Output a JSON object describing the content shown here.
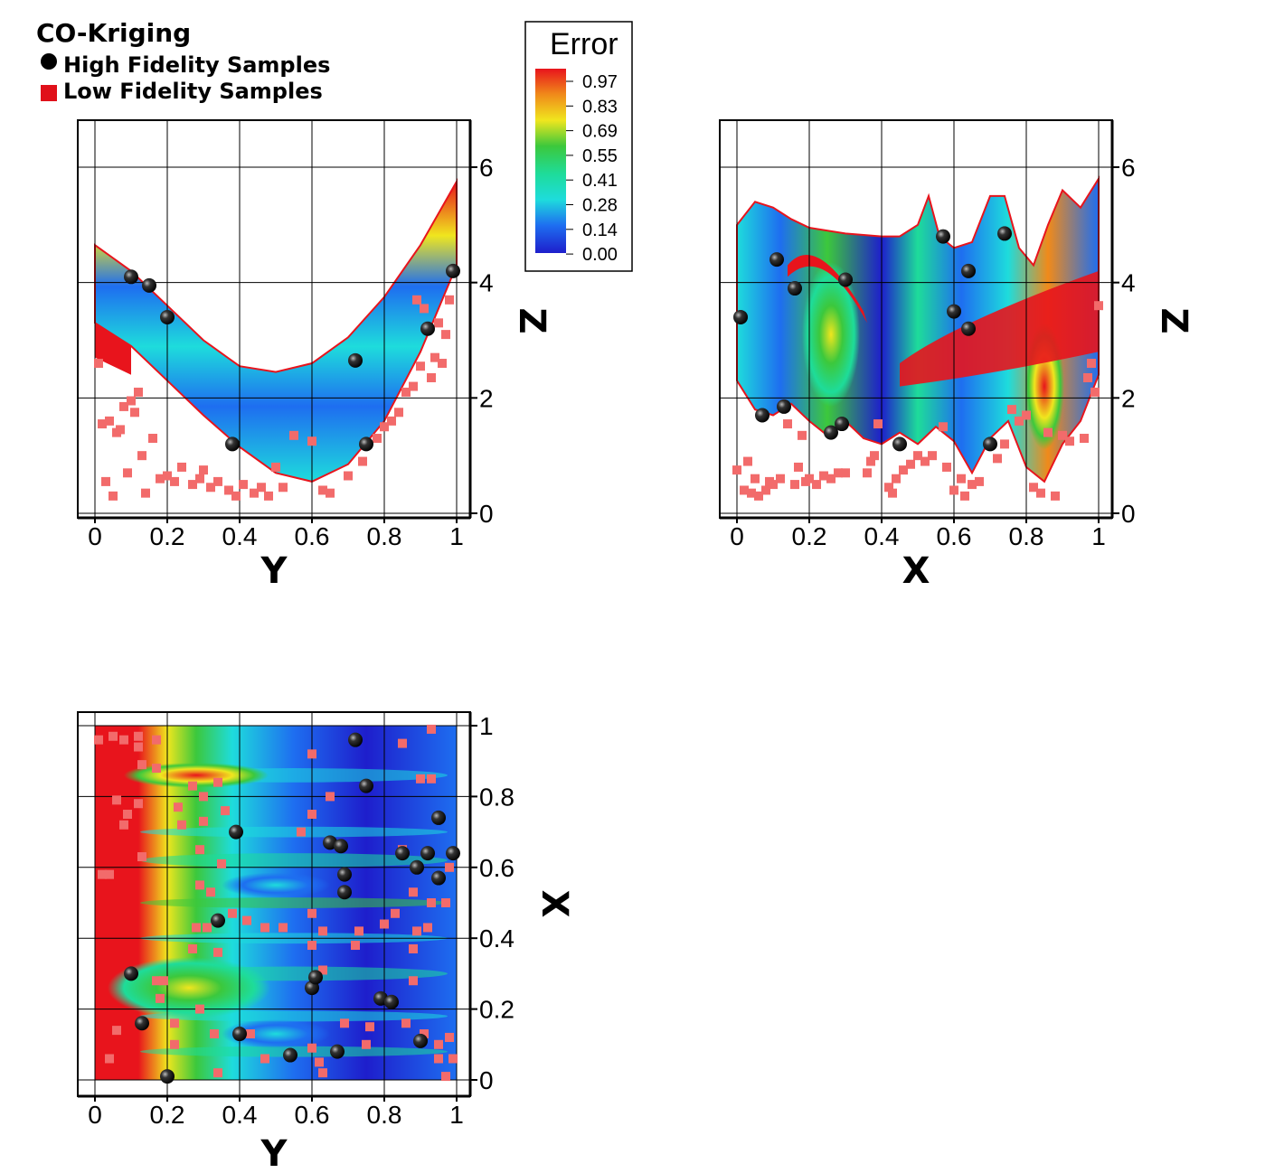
{
  "legend": {
    "title": "CO-Kriging",
    "high_label": "High Fidelity Samples",
    "low_label": "Low  Fidelity Samples",
    "high_color": "#111111",
    "low_color": "#e0101a"
  },
  "colorbar": {
    "title": "Error",
    "labels": [
      "0.97",
      "0.83",
      "0.69",
      "0.55",
      "0.41",
      "0.28",
      "0.14",
      "0.00"
    ],
    "colors": [
      "#e8141c",
      "#f08a1a",
      "#f0e61e",
      "#3cc83c",
      "#1edc9a",
      "#1edcdc",
      "#1e6ef0",
      "#1e1ecc"
    ]
  },
  "chart_data": [
    {
      "type": "scatter",
      "panel": "Y-Z projection",
      "xlabel": "Y",
      "ylabel": "Z",
      "xlim": [
        0,
        1
      ],
      "ylim": [
        0,
        6
      ],
      "xticks": [
        "0",
        "0.2",
        "0.4",
        "0.6",
        "0.8",
        "1"
      ],
      "yticks": [
        "0",
        "2",
        "4",
        "6"
      ],
      "grid": true,
      "surface": {
        "description_colormap": "Error",
        "upper_edge": [
          [
            0,
            4.65
          ],
          [
            0.1,
            4.2
          ],
          [
            0.2,
            3.6
          ],
          [
            0.3,
            3.0
          ],
          [
            0.4,
            2.55
          ],
          [
            0.5,
            2.45
          ],
          [
            0.6,
            2.6
          ],
          [
            0.7,
            3.05
          ],
          [
            0.8,
            3.75
          ],
          [
            0.9,
            4.65
          ],
          [
            1.0,
            5.75
          ]
        ],
        "lower_edge": [
          [
            0,
            3.3
          ],
          [
            0.1,
            2.9
          ],
          [
            0.2,
            2.3
          ],
          [
            0.3,
            1.7
          ],
          [
            0.4,
            1.15
          ],
          [
            0.5,
            0.7
          ],
          [
            0.6,
            0.55
          ],
          [
            0.7,
            0.85
          ],
          [
            0.8,
            1.6
          ],
          [
            0.9,
            2.8
          ],
          [
            1.0,
            4.3
          ]
        ]
      },
      "high_fidelity": [
        [
          0.1,
          4.1
        ],
        [
          0.15,
          3.95
        ],
        [
          0.2,
          3.4
        ],
        [
          0.38,
          1.2
        ],
        [
          0.72,
          2.65
        ],
        [
          0.75,
          1.2
        ],
        [
          0.92,
          3.2
        ],
        [
          0.99,
          4.2
        ]
      ],
      "low_fidelity": [
        [
          0.01,
          2.6
        ],
        [
          0.02,
          1.55
        ],
        [
          0.03,
          0.55
        ],
        [
          0.04,
          1.6
        ],
        [
          0.05,
          0.3
        ],
        [
          0.06,
          1.4
        ],
        [
          0.07,
          1.45
        ],
        [
          0.08,
          1.85
        ],
        [
          0.09,
          0.7
        ],
        [
          0.1,
          1.95
        ],
        [
          0.11,
          1.75
        ],
        [
          0.12,
          2.1
        ],
        [
          0.13,
          1.0
        ],
        [
          0.14,
          0.35
        ],
        [
          0.16,
          1.3
        ],
        [
          0.18,
          0.6
        ],
        [
          0.2,
          0.65
        ],
        [
          0.22,
          0.55
        ],
        [
          0.24,
          0.8
        ],
        [
          0.27,
          0.5
        ],
        [
          0.29,
          0.6
        ],
        [
          0.3,
          0.75
        ],
        [
          0.32,
          0.45
        ],
        [
          0.34,
          0.55
        ],
        [
          0.37,
          0.4
        ],
        [
          0.39,
          0.3
        ],
        [
          0.41,
          0.5
        ],
        [
          0.44,
          0.35
        ],
        [
          0.46,
          0.45
        ],
        [
          0.48,
          0.3
        ],
        [
          0.5,
          0.8
        ],
        [
          0.52,
          0.45
        ],
        [
          0.55,
          1.35
        ],
        [
          0.6,
          1.25
        ],
        [
          0.63,
          0.4
        ],
        [
          0.65,
          0.35
        ],
        [
          0.7,
          0.65
        ],
        [
          0.74,
          0.9
        ],
        [
          0.78,
          1.3
        ],
        [
          0.8,
          1.5
        ],
        [
          0.82,
          1.6
        ],
        [
          0.84,
          1.75
        ],
        [
          0.86,
          2.1
        ],
        [
          0.88,
          2.2
        ],
        [
          0.89,
          3.7
        ],
        [
          0.9,
          2.55
        ],
        [
          0.91,
          3.55
        ],
        [
          0.93,
          2.35
        ],
        [
          0.94,
          2.7
        ],
        [
          0.95,
          3.3
        ],
        [
          0.96,
          2.6
        ],
        [
          0.97,
          3.1
        ],
        [
          0.98,
          3.7
        ]
      ]
    },
    {
      "type": "scatter",
      "panel": "X-Z projection",
      "xlabel": "X",
      "ylabel": "Z",
      "xlim": [
        0,
        1
      ],
      "ylim": [
        0,
        6
      ],
      "xticks": [
        "0",
        "0.2",
        "0.4",
        "0.6",
        "0.8",
        "1"
      ],
      "yticks": [
        "0",
        "2",
        "4",
        "6"
      ],
      "grid": true,
      "surface": {
        "description_colormap": "Error",
        "upper_edge": [
          [
            0,
            5.0
          ],
          [
            0.05,
            5.4
          ],
          [
            0.1,
            5.3
          ],
          [
            0.15,
            5.1
          ],
          [
            0.2,
            4.95
          ],
          [
            0.3,
            4.85
          ],
          [
            0.4,
            4.8
          ],
          [
            0.45,
            4.8
          ],
          [
            0.5,
            5.0
          ],
          [
            0.53,
            5.5
          ],
          [
            0.56,
            4.8
          ],
          [
            0.6,
            4.6
          ],
          [
            0.65,
            4.7
          ],
          [
            0.7,
            5.5
          ],
          [
            0.74,
            5.5
          ],
          [
            0.78,
            4.6
          ],
          [
            0.82,
            4.3
          ],
          [
            0.86,
            5.0
          ],
          [
            0.9,
            5.6
          ],
          [
            0.95,
            5.3
          ],
          [
            1.0,
            5.8
          ]
        ],
        "lower_edge": [
          [
            0,
            2.3
          ],
          [
            0.05,
            1.8
          ],
          [
            0.1,
            1.7
          ],
          [
            0.15,
            1.9
          ],
          [
            0.2,
            1.6
          ],
          [
            0.25,
            1.35
          ],
          [
            0.3,
            1.6
          ],
          [
            0.35,
            1.3
          ],
          [
            0.4,
            1.2
          ],
          [
            0.45,
            1.4
          ],
          [
            0.5,
            1.2
          ],
          [
            0.55,
            1.5
          ],
          [
            0.6,
            1.25
          ],
          [
            0.65,
            0.7
          ],
          [
            0.7,
            1.3
          ],
          [
            0.75,
            1.6
          ],
          [
            0.8,
            0.8
          ],
          [
            0.85,
            0.55
          ],
          [
            0.9,
            1.2
          ],
          [
            0.95,
            1.6
          ],
          [
            1.0,
            2.4
          ]
        ]
      },
      "high_fidelity": [
        [
          0.01,
          3.4
        ],
        [
          0.07,
          1.7
        ],
        [
          0.11,
          4.4
        ],
        [
          0.13,
          1.85
        ],
        [
          0.16,
          3.9
        ],
        [
          0.26,
          1.4
        ],
        [
          0.29,
          1.55
        ],
        [
          0.3,
          4.05
        ],
        [
          0.45,
          1.2
        ],
        [
          0.57,
          4.8
        ],
        [
          0.6,
          3.5
        ],
        [
          0.64,
          4.2
        ],
        [
          0.64,
          3.2
        ],
        [
          0.7,
          1.2
        ],
        [
          0.74,
          4.85
        ]
      ],
      "low_fidelity": [
        [
          0.0,
          0.75
        ],
        [
          0.02,
          0.4
        ],
        [
          0.03,
          0.9
        ],
        [
          0.04,
          0.35
        ],
        [
          0.05,
          0.6
        ],
        [
          0.06,
          0.3
        ],
        [
          0.08,
          0.4
        ],
        [
          0.09,
          0.55
        ],
        [
          0.1,
          0.5
        ],
        [
          0.12,
          0.6
        ],
        [
          0.14,
          1.55
        ],
        [
          0.16,
          0.5
        ],
        [
          0.17,
          0.8
        ],
        [
          0.18,
          1.35
        ],
        [
          0.19,
          0.55
        ],
        [
          0.2,
          0.6
        ],
        [
          0.22,
          0.5
        ],
        [
          0.24,
          0.65
        ],
        [
          0.26,
          0.6
        ],
        [
          0.28,
          0.7
        ],
        [
          0.3,
          0.7
        ],
        [
          0.36,
          0.7
        ],
        [
          0.37,
          0.9
        ],
        [
          0.38,
          1.0
        ],
        [
          0.39,
          1.55
        ],
        [
          0.42,
          0.45
        ],
        [
          0.43,
          0.35
        ],
        [
          0.44,
          0.6
        ],
        [
          0.46,
          0.75
        ],
        [
          0.48,
          0.85
        ],
        [
          0.5,
          1.0
        ],
        [
          0.52,
          0.9
        ],
        [
          0.54,
          1.0
        ],
        [
          0.57,
          1.5
        ],
        [
          0.58,
          0.8
        ],
        [
          0.6,
          0.4
        ],
        [
          0.62,
          0.6
        ],
        [
          0.63,
          0.3
        ],
        [
          0.65,
          0.5
        ],
        [
          0.67,
          0.55
        ],
        [
          0.72,
          0.95
        ],
        [
          0.74,
          1.2
        ],
        [
          0.76,
          1.8
        ],
        [
          0.78,
          1.6
        ],
        [
          0.8,
          1.7
        ],
        [
          0.82,
          0.45
        ],
        [
          0.84,
          0.35
        ],
        [
          0.86,
          1.4
        ],
        [
          0.88,
          0.3
        ],
        [
          0.9,
          1.35
        ],
        [
          0.92,
          1.25
        ],
        [
          0.96,
          1.3
        ],
        [
          0.97,
          2.35
        ],
        [
          0.98,
          2.6
        ],
        [
          0.99,
          2.1
        ],
        [
          1.0,
          3.6
        ]
      ]
    },
    {
      "type": "heatmap",
      "panel": "Y-X projection",
      "xlabel": "Y",
      "ylabel": "X",
      "xlim": [
        0,
        1
      ],
      "ylim": [
        0,
        1
      ],
      "xticks": [
        "0",
        "0.2",
        "0.4",
        "0.6",
        "0.8",
        "1"
      ],
      "yticks": [
        "0",
        "0.2",
        "0.4",
        "0.6",
        "0.8",
        "1"
      ],
      "grid": true,
      "high_fidelity": [
        [
          0.2,
          0.01
        ],
        [
          0.13,
          0.16
        ],
        [
          0.1,
          0.3
        ],
        [
          0.4,
          0.13
        ],
        [
          0.54,
          0.07
        ],
        [
          0.67,
          0.08
        ],
        [
          0.6,
          0.26
        ],
        [
          0.61,
          0.29
        ],
        [
          0.79,
          0.23
        ],
        [
          0.82,
          0.22
        ],
        [
          0.9,
          0.11
        ],
        [
          0.34,
          0.45
        ],
        [
          0.69,
          0.53
        ],
        [
          0.69,
          0.58
        ],
        [
          0.39,
          0.7
        ],
        [
          0.65,
          0.67
        ],
        [
          0.68,
          0.66
        ],
        [
          0.85,
          0.64
        ],
        [
          0.89,
          0.6
        ],
        [
          0.92,
          0.64
        ],
        [
          0.95,
          0.57
        ],
        [
          0.99,
          0.64
        ],
        [
          0.95,
          0.74
        ],
        [
          0.75,
          0.83
        ],
        [
          0.72,
          0.96
        ]
      ],
      "low_fidelity": [
        [
          0.01,
          0.96
        ],
        [
          0.05,
          0.97
        ],
        [
          0.08,
          0.96
        ],
        [
          0.12,
          0.97
        ],
        [
          0.17,
          0.96
        ],
        [
          0.13,
          0.89
        ],
        [
          0.17,
          0.88
        ],
        [
          0.27,
          0.83
        ],
        [
          0.3,
          0.8
        ],
        [
          0.34,
          0.84
        ],
        [
          0.06,
          0.79
        ],
        [
          0.09,
          0.75
        ],
        [
          0.08,
          0.72
        ],
        [
          0.12,
          0.78
        ],
        [
          0.24,
          0.72
        ],
        [
          0.3,
          0.73
        ],
        [
          0.36,
          0.76
        ],
        [
          0.29,
          0.65
        ],
        [
          0.35,
          0.61
        ],
        [
          0.13,
          0.63
        ],
        [
          0.02,
          0.58
        ],
        [
          0.04,
          0.58
        ],
        [
          0.29,
          0.55
        ],
        [
          0.32,
          0.53
        ],
        [
          0.38,
          0.47
        ],
        [
          0.31,
          0.43
        ],
        [
          0.28,
          0.43
        ],
        [
          0.42,
          0.45
        ],
        [
          0.47,
          0.43
        ],
        [
          0.52,
          0.43
        ],
        [
          0.6,
          0.47
        ],
        [
          0.63,
          0.42
        ],
        [
          0.27,
          0.37
        ],
        [
          0.34,
          0.36
        ],
        [
          0.6,
          0.38
        ],
        [
          0.72,
          0.38
        ],
        [
          0.73,
          0.42
        ],
        [
          0.8,
          0.44
        ],
        [
          0.83,
          0.47
        ],
        [
          0.88,
          0.37
        ],
        [
          0.92,
          0.43
        ],
        [
          0.93,
          0.5
        ],
        [
          0.98,
          0.6
        ],
        [
          0.88,
          0.28
        ],
        [
          0.91,
          0.13
        ],
        [
          0.95,
          0.1
        ],
        [
          0.98,
          0.12
        ],
        [
          0.99,
          0.06
        ],
        [
          0.95,
          0.06
        ],
        [
          0.86,
          0.16
        ],
        [
          0.17,
          0.28
        ],
        [
          0.19,
          0.28
        ],
        [
          0.18,
          0.23
        ],
        [
          0.29,
          0.2
        ],
        [
          0.22,
          0.16
        ],
        [
          0.33,
          0.13
        ],
        [
          0.43,
          0.13
        ],
        [
          0.47,
          0.06
        ],
        [
          0.6,
          0.09
        ],
        [
          0.62,
          0.05
        ],
        [
          0.75,
          0.1
        ],
        [
          0.63,
          0.02
        ],
        [
          0.06,
          0.14
        ],
        [
          0.04,
          0.06
        ],
        [
          0.22,
          0.1
        ],
        [
          0.34,
          0.02
        ],
        [
          0.69,
          0.16
        ],
        [
          0.76,
          0.15
        ],
        [
          0.63,
          0.31
        ],
        [
          0.12,
          0.94
        ],
        [
          0.23,
          0.77
        ],
        [
          0.6,
          0.92
        ],
        [
          0.85,
          0.95
        ],
        [
          0.93,
          0.99
        ],
        [
          0.65,
          0.8
        ],
        [
          0.9,
          0.85
        ],
        [
          0.93,
          0.85
        ],
        [
          0.85,
          0.65
        ],
        [
          0.88,
          0.53
        ],
        [
          0.97,
          0.5
        ],
        [
          0.89,
          0.42
        ],
        [
          0.6,
          0.75
        ],
        [
          0.57,
          0.7
        ],
        [
          0.98,
          0.12
        ],
        [
          0.97,
          0.01
        ]
      ]
    }
  ]
}
